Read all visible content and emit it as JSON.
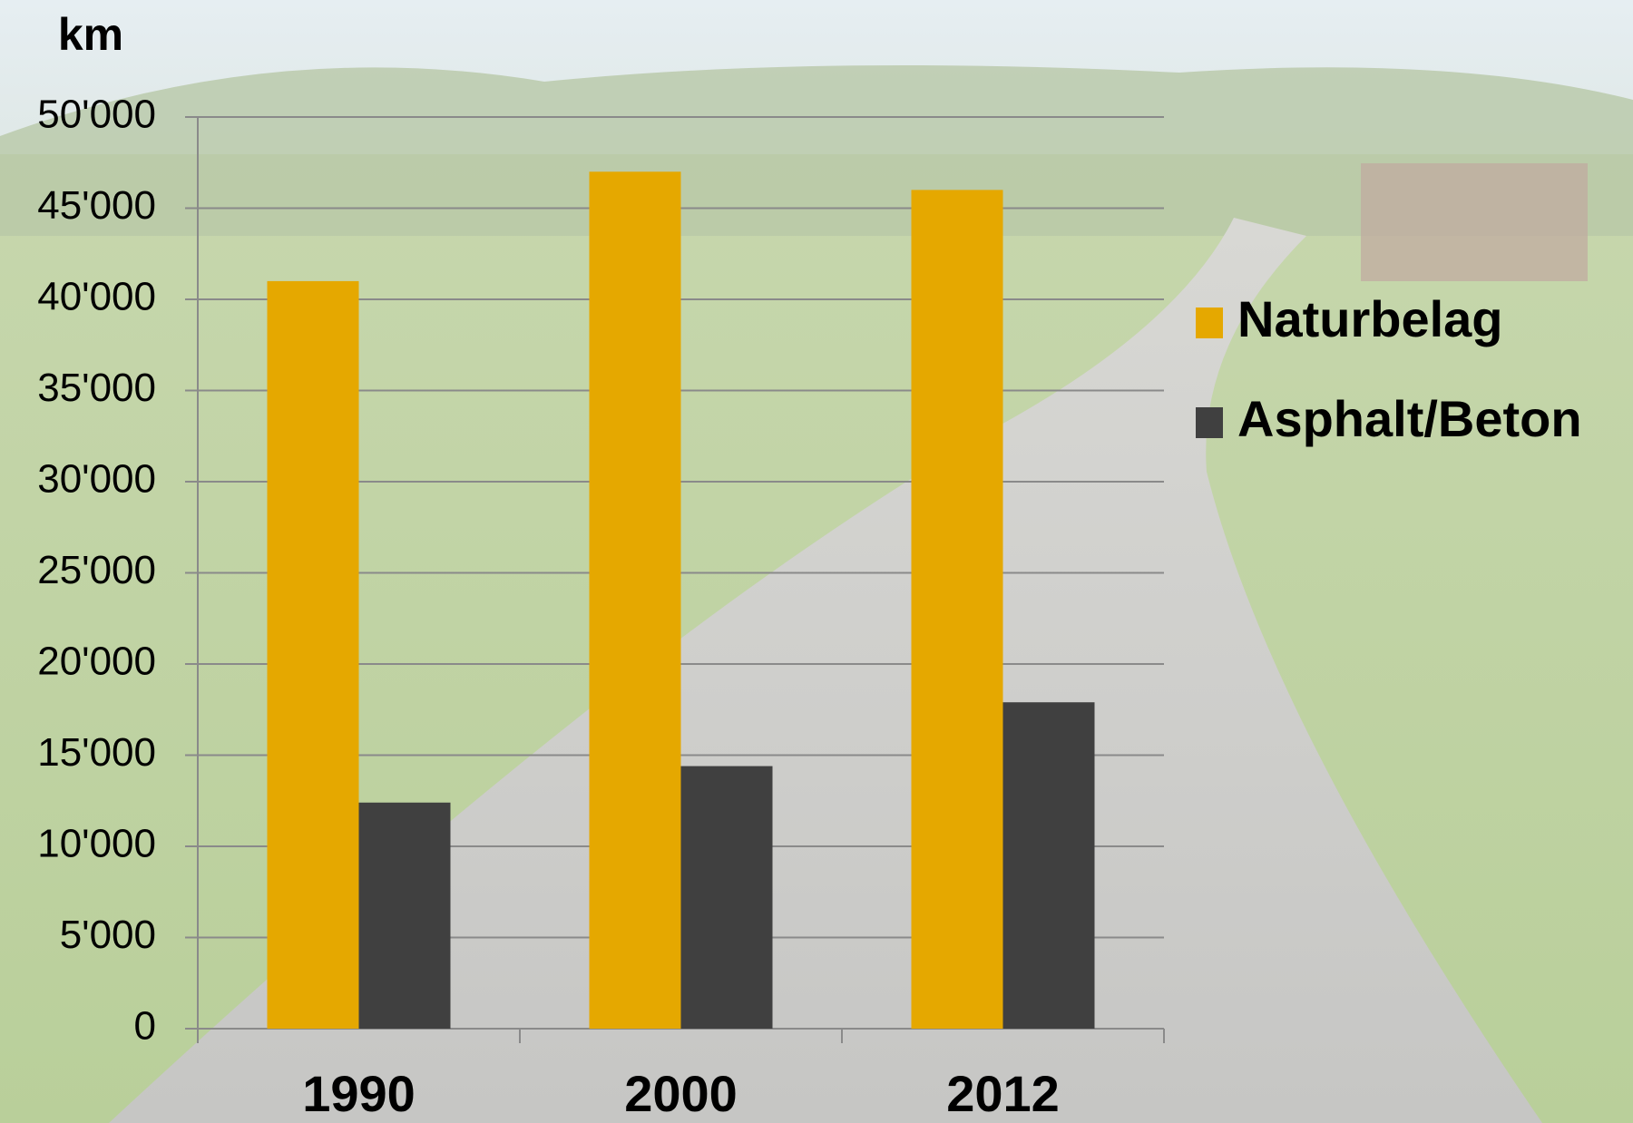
{
  "chart_data": {
    "type": "bar",
    "y_label": "km",
    "categories": [
      "1990",
      "2000",
      "2012"
    ],
    "series": [
      {
        "name": "Naturbelag",
        "color": "#e5a800",
        "values": [
          41000,
          47000,
          46000
        ]
      },
      {
        "name": "Asphalt/Beton",
        "color": "#404040",
        "values": [
          12400,
          14400,
          17900
        ]
      }
    ],
    "ylim": [
      0,
      50000
    ],
    "yticks": [
      0,
      {
        "value": 5000,
        "label": "5'000"
      },
      {
        "value": 10000,
        "label": "10'000"
      },
      {
        "value": 15000,
        "label": "15'000"
      },
      {
        "value": 20000,
        "label": "20'000"
      },
      {
        "value": 25000,
        "label": "25'000"
      },
      {
        "value": 30000,
        "label": "30'000"
      },
      {
        "value": 35000,
        "label": "35'000"
      },
      {
        "value": 40000,
        "label": "40'000"
      },
      {
        "value": 45000,
        "label": "45'000"
      },
      {
        "value": 50000,
        "label": "50'000"
      }
    ],
    "grid": true,
    "legend": "right"
  }
}
